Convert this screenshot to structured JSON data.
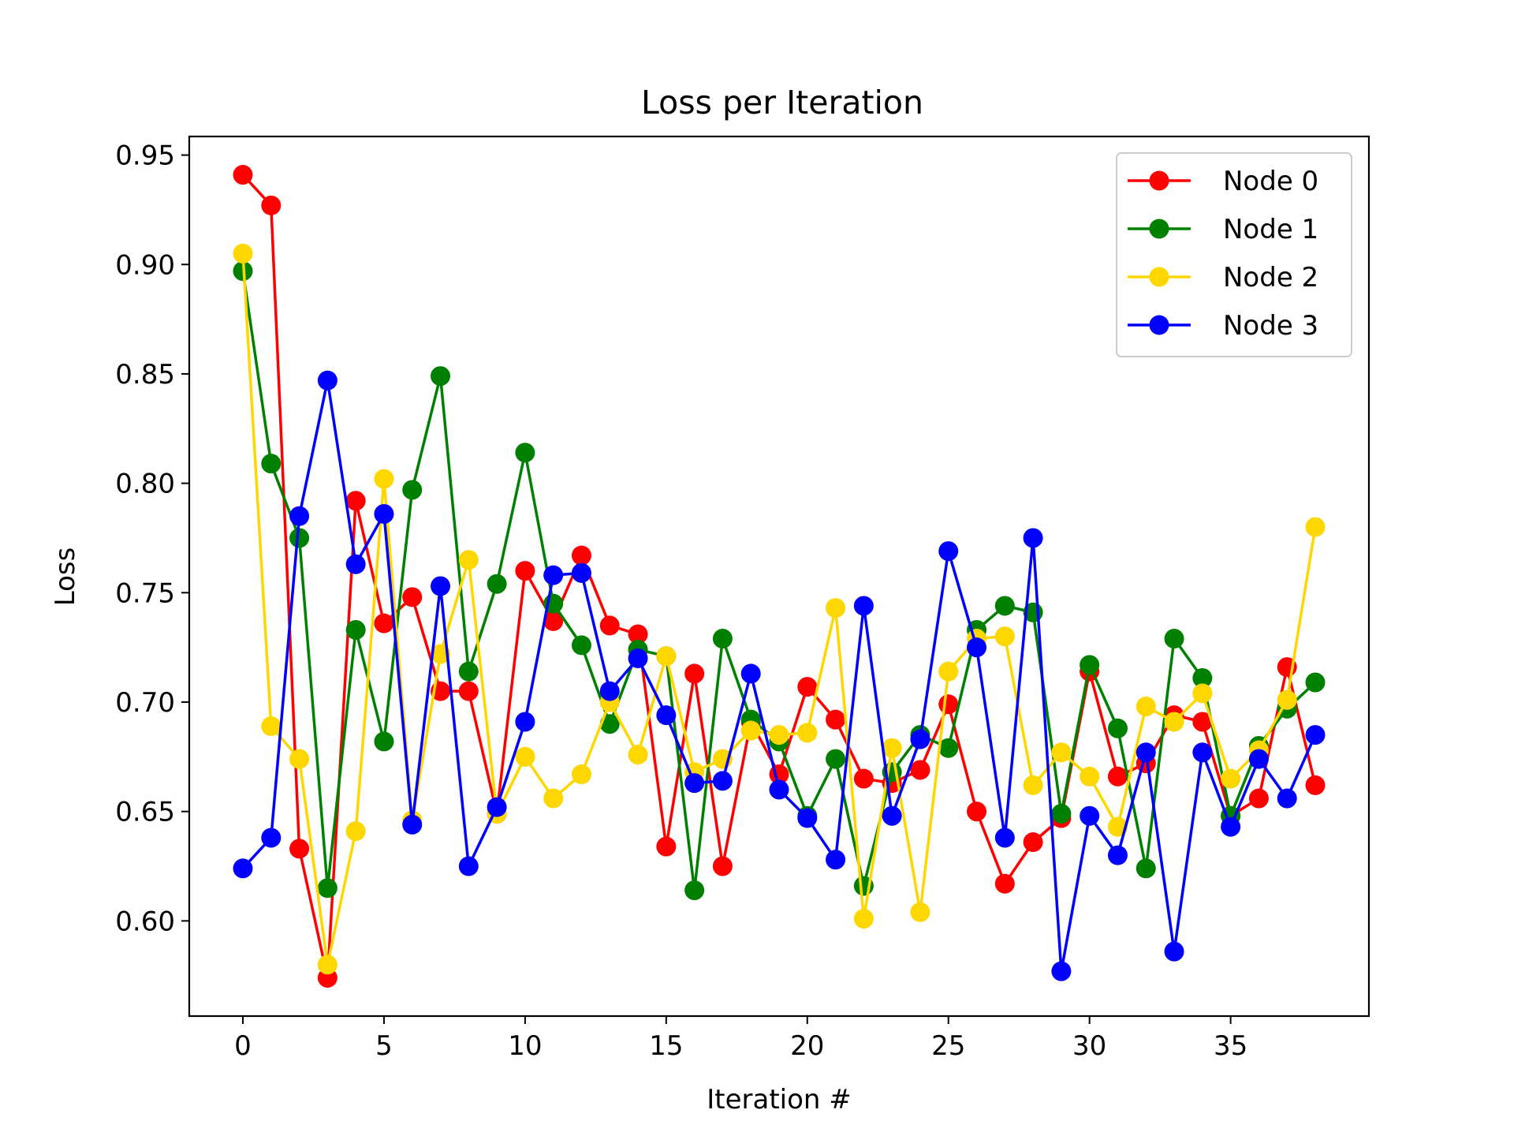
{
  "chart_data": {
    "type": "line",
    "title": "Loss per Iteration",
    "xlabel": "Iteration #",
    "ylabel": "Loss",
    "xlim": [
      -1.9,
      39.9
    ],
    "ylim": [
      0.5565,
      0.9585
    ],
    "xticks": [
      0,
      5,
      10,
      15,
      20,
      25,
      30,
      35
    ],
    "xtick_labels": [
      "0",
      "5",
      "10",
      "15",
      "20",
      "25",
      "30",
      "35"
    ],
    "yticks": [
      0.6,
      0.65,
      0.7,
      0.75,
      0.8,
      0.85,
      0.9,
      0.95
    ],
    "ytick_labels": [
      "0.60",
      "0.65",
      "0.70",
      "0.75",
      "0.80",
      "0.85",
      "0.90",
      "0.95"
    ],
    "grid": false,
    "legend_position": "top-right",
    "x": [
      0,
      1,
      2,
      3,
      4,
      5,
      6,
      7,
      8,
      9,
      10,
      11,
      12,
      13,
      14,
      15,
      16,
      17,
      18,
      19,
      20,
      21,
      22,
      23,
      24,
      25,
      26,
      27,
      28,
      29,
      30,
      31,
      32,
      33,
      34,
      35,
      36,
      37,
      38
    ],
    "series": [
      {
        "name": "Node 0",
        "color": "#ff0000",
        "values": [
          0.941,
          0.927,
          0.633,
          0.574,
          0.792,
          0.736,
          0.748,
          0.705,
          0.705,
          0.649,
          0.76,
          0.737,
          0.767,
          0.735,
          0.731,
          0.634,
          0.713,
          0.625,
          0.691,
          0.667,
          0.707,
          0.692,
          0.665,
          0.663,
          0.669,
          0.699,
          0.65,
          0.617,
          0.636,
          0.647,
          0.714,
          0.666,
          0.672,
          0.694,
          0.691,
          0.648,
          0.656,
          0.716,
          0.662
        ]
      },
      {
        "name": "Node 1",
        "color": "#008000",
        "values": [
          0.897,
          0.809,
          0.775,
          0.615,
          0.733,
          0.682,
          0.797,
          0.849,
          0.714,
          0.754,
          0.814,
          0.745,
          0.726,
          0.69,
          0.724,
          0.721,
          0.614,
          0.729,
          0.692,
          0.682,
          0.648,
          0.674,
          0.616,
          0.668,
          0.685,
          0.679,
          0.733,
          0.744,
          0.741,
          0.649,
          0.717,
          0.688,
          0.624,
          0.729,
          0.711,
          0.648,
          0.68,
          0.697,
          0.709
        ]
      },
      {
        "name": "Node 2",
        "color": "#ffd700",
        "values": [
          0.905,
          0.689,
          0.674,
          0.58,
          0.641,
          0.802,
          0.646,
          0.722,
          0.765,
          0.649,
          0.675,
          0.656,
          0.667,
          0.7,
          0.676,
          0.721,
          0.668,
          0.674,
          0.687,
          0.685,
          0.686,
          0.743,
          0.601,
          0.679,
          0.604,
          0.714,
          0.729,
          0.73,
          0.662,
          0.677,
          0.666,
          0.643,
          0.698,
          0.691,
          0.704,
          0.665,
          0.678,
          0.701,
          0.78
        ]
      },
      {
        "name": "Node 3",
        "color": "#0000ff",
        "values": [
          0.624,
          0.638,
          0.785,
          0.847,
          0.763,
          0.786,
          0.644,
          0.753,
          0.625,
          0.652,
          0.691,
          0.758,
          0.759,
          0.705,
          0.72,
          0.694,
          0.663,
          0.664,
          0.713,
          0.66,
          0.647,
          0.628,
          0.744,
          0.648,
          0.683,
          0.769,
          0.725,
          0.638,
          0.775,
          0.577,
          0.648,
          0.63,
          0.677,
          0.586,
          0.677,
          0.643,
          0.674,
          0.656,
          0.685
        ]
      }
    ]
  }
}
